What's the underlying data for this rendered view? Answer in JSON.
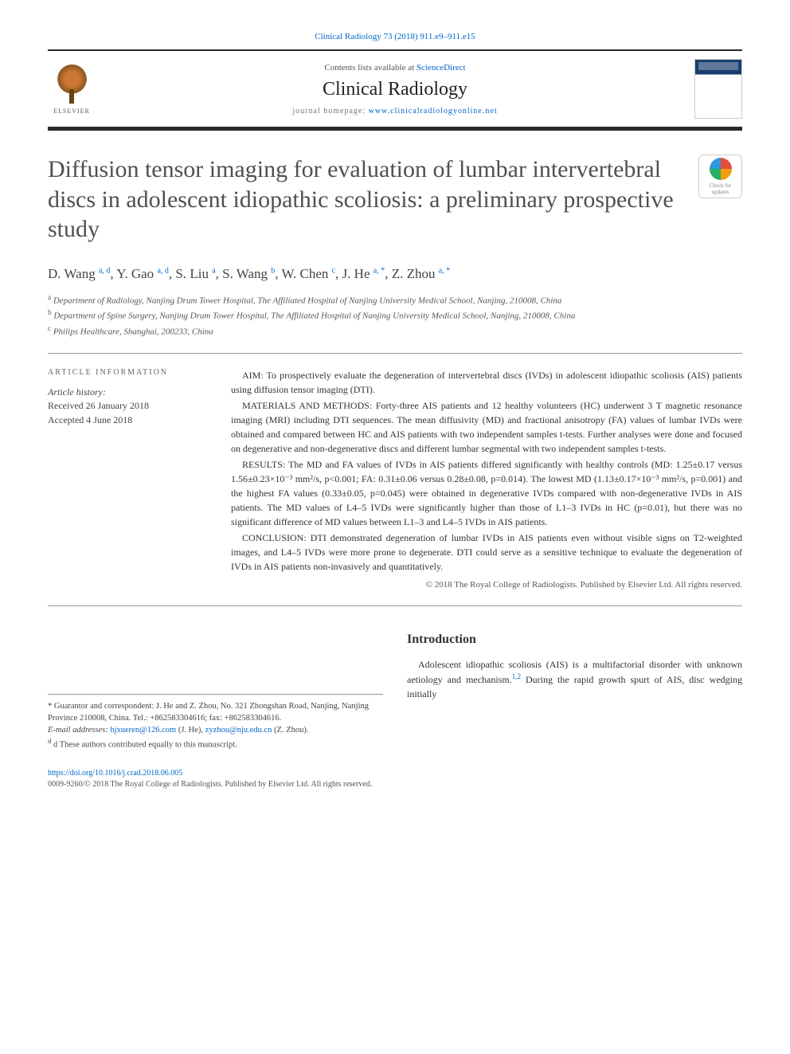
{
  "header": {
    "citation": "Clinical Radiology 73 (2018) 911.e9–911.e15",
    "contents_prefix": "Contents lists available at ",
    "contents_link": "ScienceDirect",
    "journal_name": "Clinical Radiology",
    "homepage_label": "journal homepage: ",
    "homepage_url": "www.clinicalradiologyonline.net",
    "publisher_logo_text": "ELSEVIER",
    "cover_label": "RADIOLOGY"
  },
  "crossmark": {
    "line1": "Check for",
    "line2": "updates"
  },
  "title": "Diffusion tensor imaging for evaluation of lumbar intervertebral discs in adolescent idiopathic scoliosis: a preliminary prospective study",
  "authors_html": "D. Wang <sup>a, d</sup>, Y. Gao <sup>a, d</sup>, S. Liu <sup>a</sup>, S. Wang <sup>b</sup>, W. Chen <sup>c</sup>, J. He <sup>a, *</sup>, Z. Zhou <sup>a, *</sup>",
  "affiliations": {
    "a": "Department of Radiology, Nanjing Drum Tower Hospital, The Affiliated Hospital of Nanjing University Medical School, Nanjing, 210008, China",
    "b": "Department of Spine Surgery, Nanjing Drum Tower Hospital, The Affiliated Hospital of Nanjing University Medical School, Nanjing, 210008, China",
    "c": "Philips Healthcare, Shanghai, 200233, China"
  },
  "article_info": {
    "heading": "ARTICLE INFORMATION",
    "history_label": "Article history:",
    "received": "Received 26 January 2018",
    "accepted": "Accepted 4 June 2018"
  },
  "abstract": {
    "aim": "AIM: To prospectively evaluate the degeneration of intervertebral discs (IVDs) in adolescent idiopathic scoliosis (AIS) patients using diffusion tensor imaging (DTI).",
    "methods": "MATERIALS AND METHODS: Forty-three AIS patients and 12 healthy volunteers (HC) underwent 3 T magnetic resonance imaging (MRI) including DTI sequences. The mean diffusivity (MD) and fractional anisotropy (FA) values of lumbar IVDs were obtained and compared between HC and AIS patients with two independent samples t-tests. Further analyses were done and focused on degenerative and non-degenerative discs and different lumbar segmental with two independent samples t-tests.",
    "results": "RESULTS: The MD and FA values of IVDs in AIS patients differed significantly with healthy controls (MD: 1.25±0.17 versus 1.56±0.23×10⁻³ mm²/s, p<0.001; FA: 0.31±0.06 versus 0.28±0.08, p=0.014). The lowest MD (1.13±0.17×10⁻³ mm²/s, p=0.001) and the highest FA values (0.33±0.05, p=0.045) were obtained in degenerative IVDs compared with non-degenerative IVDs in AIS patients. The MD values of L4–5 IVDs were significantly higher than those of L1–3 IVDs in HC (p=0.01), but there was no significant difference of MD values between L1–3 and L4–5 IVDs in AIS patients.",
    "conclusion": "CONCLUSION: DTI demonstrated degeneration of lumbar IVDs in AIS patients even without visible signs on T2-weighted images, and L4–5 IVDs were more prone to degenerate. DTI could serve as a sensitive technique to evaluate the degeneration of IVDs in AIS patients non-invasively and quantitatively.",
    "copyright": "© 2018 The Royal College of Radiologists. Published by Elsevier Ltd. All rights reserved."
  },
  "footnotes": {
    "correspondent": "* Guarantor and correspondent: J. He and Z. Zhou, No. 321 Zhongshan Road, Nanjing, Nanjing Province 210008, China. Tel.: +862583304616; fax: +862583304616.",
    "email_label": "E-mail addresses: ",
    "email1": "hjxueren@126.com",
    "email1_who": " (J. He), ",
    "email2": "zyzhou@nju.edu.cn",
    "email2_who": " (Z. Zhou).",
    "equal": "d These authors contributed equally to this manuscript."
  },
  "introduction": {
    "heading": "Introduction",
    "text": "Adolescent idiopathic scoliosis (AIS) is a multifactorial disorder with unknown aetiology and mechanism.¹,² During the rapid growth spurt of AIS, disc wedging initially"
  },
  "footer": {
    "doi": "https://doi.org/10.1016/j.crad.2018.06.005",
    "issn_copyright": "0009-9260/© 2018 The Royal College of Radiologists. Published by Elsevier Ltd. All rights reserved."
  },
  "colors": {
    "link": "#0066cc",
    "text": "#333333",
    "border_dark": "#2a2a2a"
  }
}
